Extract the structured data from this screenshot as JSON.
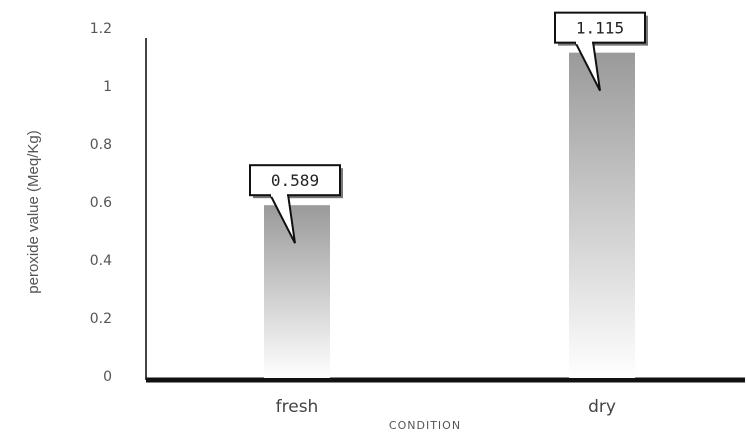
{
  "chart_data": {
    "type": "bar",
    "categories": [
      "fresh",
      "dry"
    ],
    "values": [
      0.589,
      1.115
    ],
    "data_labels": [
      "0.589",
      "1.115"
    ],
    "title": "",
    "xlabel": "CONDITION",
    "ylabel": "peroxide value (Meq/Kg)",
    "ylim": [
      0,
      1.2
    ],
    "yticks": [
      "0",
      "0.2",
      "0.4",
      "0.6",
      "0.8",
      "1",
      "1.2"
    ],
    "bar_color_top": "#9a9a9a",
    "bar_color_bottom": "#ffffff",
    "grid": false,
    "legend": "none"
  }
}
